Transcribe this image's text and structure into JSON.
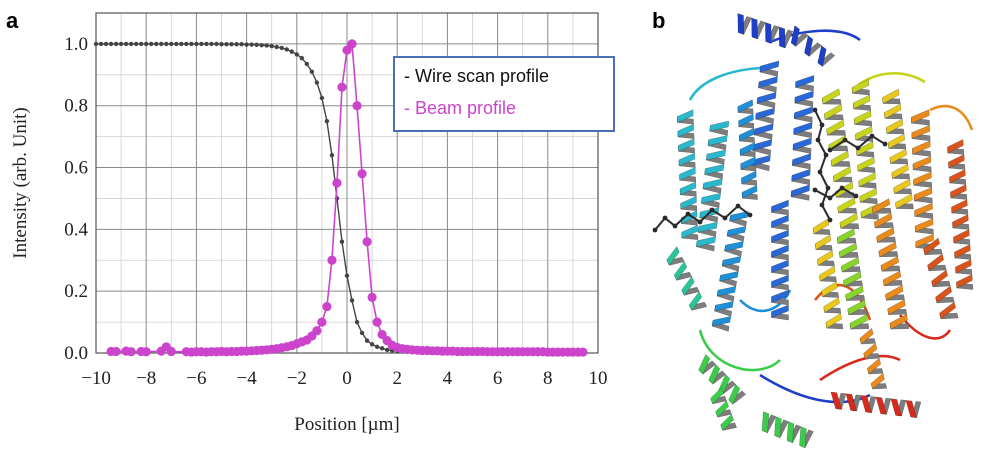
{
  "panels": {
    "a": "a",
    "b": "b"
  },
  "chart_data": {
    "type": "scatter",
    "xlabel": "Position [µm]",
    "ylabel": "Intensity (arb. Unit)",
    "xlim": [
      -10,
      10
    ],
    "ylim": [
      0,
      1.1
    ],
    "grid": true,
    "x_ticks": [
      -10,
      -8,
      -6,
      -4,
      -2,
      0,
      2,
      4,
      6,
      8,
      10
    ],
    "x_tick_labels": [
      "−10",
      "−8",
      "−6",
      "−4",
      "−2",
      "0",
      "2",
      "4",
      "6",
      "8",
      "10"
    ],
    "y_ticks": [
      0,
      0.2,
      0.4,
      0.6,
      0.8,
      1.0
    ],
    "y_tick_labels": [
      "0.0",
      "0.2",
      "0.4",
      "0.6",
      "0.8",
      "1.0"
    ],
    "legend_position": "top-right",
    "series": [
      {
        "name": "- Wire scan profile",
        "color": "#444444",
        "x": [
          -10,
          -9.8,
          -9.6,
          -9.4,
          -9.2,
          -9,
          -8.8,
          -8.6,
          -8.4,
          -8.2,
          -8,
          -7.8,
          -7.6,
          -7.4,
          -7.2,
          -7,
          -6.8,
          -6.6,
          -6.4,
          -6.2,
          -6,
          -5.8,
          -5.6,
          -5.4,
          -5.2,
          -5,
          -4.8,
          -4.6,
          -4.4,
          -4.2,
          -4,
          -3.8,
          -3.6,
          -3.4,
          -3.2,
          -3,
          -2.8,
          -2.6,
          -2.4,
          -2.2,
          -2,
          -1.8,
          -1.6,
          -1.4,
          -1.2,
          -1,
          -0.8,
          -0.6,
          -0.4,
          -0.2,
          0,
          0.2,
          0.4,
          0.6,
          0.8,
          1,
          1.2,
          1.4,
          1.6,
          1.8,
          2,
          2.2,
          2.4,
          2.6,
          2.8,
          3,
          3.2,
          3.4,
          3.6,
          3.8,
          4,
          4.2,
          4.4,
          4.6,
          4.8,
          5,
          5.2,
          5.4,
          5.6,
          5.8,
          6,
          6.2,
          6.4,
          6.6,
          6.8,
          7,
          7.2,
          7.4,
          7.6,
          7.8,
          8,
          8.2,
          8.4,
          8.6,
          8.8,
          9,
          9.2,
          9.4
        ],
        "y": [
          1,
          1,
          1,
          1,
          1,
          1,
          1,
          1,
          1,
          1,
          1,
          1,
          1,
          1,
          1,
          1,
          1,
          1,
          1,
          1,
          1,
          1,
          1,
          1,
          1,
          0.999,
          0.999,
          0.999,
          0.999,
          0.999,
          0.998,
          0.998,
          0.997,
          0.996,
          0.995,
          0.993,
          0.99,
          0.987,
          0.982,
          0.975,
          0.966,
          0.954,
          0.935,
          0.91,
          0.875,
          0.825,
          0.75,
          0.64,
          0.5,
          0.36,
          0.25,
          0.17,
          0.1,
          0.065,
          0.04,
          0.028,
          0.02,
          0.015,
          0.01,
          0.008,
          0.006,
          0.005,
          0.004,
          0.003,
          0.002,
          0.002,
          0.001,
          0.001,
          0.001,
          0,
          0,
          0,
          0,
          0,
          0,
          0,
          0,
          0,
          0,
          0,
          0,
          0,
          0,
          0,
          0,
          0,
          0,
          0,
          0,
          0,
          0,
          0,
          0,
          0,
          0,
          0,
          0,
          0
        ]
      },
      {
        "name": "- Beam profile",
        "color": "#cc44cc",
        "x": [
          -9.4,
          -9.2,
          -8.8,
          -8.6,
          -8.2,
          -8,
          -7.4,
          -7.2,
          -7,
          -6.4,
          -6.2,
          -6,
          -5.8,
          -5.6,
          -5.4,
          -5.2,
          -5,
          -4.8,
          -4.6,
          -4.4,
          -4.2,
          -4,
          -3.8,
          -3.6,
          -3.4,
          -3.2,
          -3,
          -2.8,
          -2.6,
          -2.4,
          -2.2,
          -2,
          -1.8,
          -1.6,
          -1.4,
          -1.2,
          -1,
          -0.8,
          -0.6,
          -0.4,
          -0.2,
          0,
          0.2,
          0.4,
          0.6,
          0.8,
          1,
          1.2,
          1.4,
          1.6,
          1.8,
          2,
          2.2,
          2.4,
          2.6,
          2.8,
          3,
          3.2,
          3.4,
          3.6,
          3.8,
          4,
          4.2,
          4.4,
          4.6,
          4.8,
          5,
          5.2,
          5.4,
          5.6,
          5.8,
          6,
          6.2,
          6.4,
          6.6,
          6.8,
          7,
          7.2,
          7.4,
          7.6,
          7.8,
          8,
          8.2,
          8.4,
          8.6,
          8.8,
          9,
          9.2,
          9.4
        ],
        "y": [
          0.005,
          0.005,
          0.006,
          0.004,
          0.005,
          0.004,
          0.006,
          0.02,
          0.005,
          0.004,
          0.003,
          0.004,
          0.004,
          0.003,
          0.004,
          0.004,
          0.005,
          0.004,
          0.005,
          0.005,
          0.006,
          0.006,
          0.007,
          0.008,
          0.009,
          0.01,
          0.012,
          0.014,
          0.017,
          0.02,
          0.024,
          0.03,
          0.036,
          0.042,
          0.055,
          0.072,
          0.1,
          0.15,
          0.3,
          0.55,
          0.86,
          0.98,
          1.0,
          0.8,
          0.58,
          0.36,
          0.18,
          0.1,
          0.06,
          0.04,
          0.025,
          0.018,
          0.014,
          0.012,
          0.01,
          0.009,
          0.008,
          0.008,
          0.007,
          0.007,
          0.006,
          0.006,
          0.006,
          0.005,
          0.005,
          0.005,
          0.005,
          0.005,
          0.005,
          0.004,
          0.004,
          0.004,
          0.004,
          0.004,
          0.004,
          0.004,
          0.004,
          0.004,
          0.004,
          0.004,
          0.004,
          0.003,
          0.003,
          0.003,
          0.003,
          0.003,
          0.003,
          0.003,
          0.003
        ]
      }
    ]
  },
  "protein": {
    "colors": [
      "#1f3fc8",
      "#2a68d8",
      "#1f8fd8",
      "#2bb8cc",
      "#2ac49a",
      "#3ccc4c",
      "#88d42c",
      "#c8d41c",
      "#e8c81c",
      "#e88a1c",
      "#d8541c",
      "#d82a1c"
    ],
    "coil_color": "#8c8c8c",
    "ligand_color": "#2a2a2a"
  }
}
